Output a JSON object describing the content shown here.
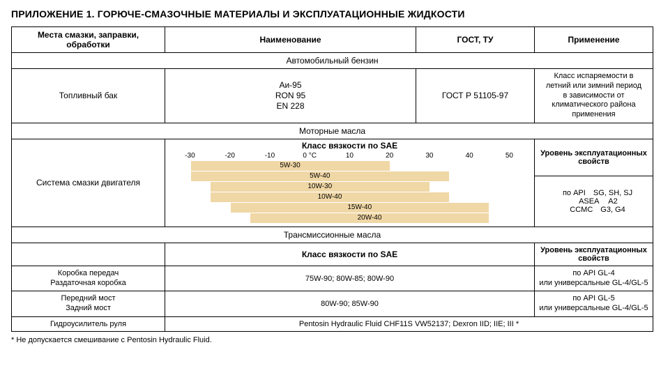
{
  "title": "ПРИЛОЖЕНИЕ 1. ГОРЮЧЕ-СМАЗОЧНЫЕ МАТЕРИАЛЫ И ЭКСПЛУАТАЦИОННЫЕ ЖИДКОСТИ",
  "columns": {
    "place": "Места смазки, заправки, обработки",
    "name": "Наименование",
    "gost": "ГОСТ, ТУ",
    "app": "Применение"
  },
  "sections": {
    "fuel": "Автомобильный бензин",
    "motor": "Моторные масла",
    "trans": "Трансмиссионные масла"
  },
  "fuel_row": {
    "place": "Топливный бак",
    "name_lines": [
      "Аи-95",
      "RON 95",
      "EN 228"
    ],
    "gost": "ГОСТ Р 51105-97",
    "app_lines": [
      "Класс испаряемости в",
      "летний или зимний период",
      "в зависимости от",
      "климатического района",
      "применения"
    ]
  },
  "chart": {
    "title": "Класс вязкости по SAE",
    "axis_labels": [
      "-30",
      "-20",
      "-10",
      "0 °C",
      "10",
      "20",
      "30",
      "40",
      "50"
    ],
    "axis_min": -35,
    "axis_max": 55,
    "bar_color": "#f0d7a6",
    "bars": [
      {
        "label": "5W-30",
        "from": -30,
        "to": 20
      },
      {
        "label": "5W-40",
        "from": -30,
        "to": 35
      },
      {
        "label": "10W-30",
        "from": -25,
        "to": 30
      },
      {
        "label": "10W-40",
        "from": -25,
        "to": 35
      },
      {
        "label": "15W-40",
        "from": -20,
        "to": 45
      },
      {
        "label": "20W-40",
        "from": -15,
        "to": 45
      }
    ]
  },
  "motor": {
    "place": "Система смазки двигателя",
    "props_head": "Уровень эксплуатационных свойств",
    "props": [
      [
        "по API",
        "SG, SH, SJ"
      ],
      [
        "ASEA",
        "A2"
      ],
      [
        "CCMC",
        "G3, G4"
      ]
    ]
  },
  "trans": {
    "sae_head": "Класс вязкости по SAE",
    "props_head": "Уровень эксплуатационных свойств",
    "rows": [
      {
        "place_lines": [
          "Коробка передач",
          "Раздаточная коробка"
        ],
        "name": "75W-90; 80W-85; 80W-90",
        "app_lines": [
          "по API    GL-4",
          "или универсальные GL-4/GL-5"
        ]
      },
      {
        "place_lines": [
          "Передний мост",
          "Задний мост"
        ],
        "name": "80W-90; 85W-90",
        "app_lines": [
          "по API    GL-5",
          "или универсальные GL-4/GL-5"
        ]
      }
    ],
    "last": {
      "place": "Гидроусилитель руля",
      "name": "Pentosin Hydraulic Fluid CHF11S VW52137;   Dexron IID; IIE; III *"
    }
  },
  "footnote": "*  Не допускается смешивание с Pentosin Hydraulic Fluid."
}
